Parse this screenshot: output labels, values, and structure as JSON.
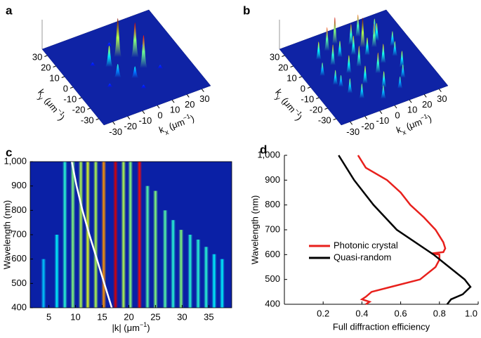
{
  "chart_data": [
    {
      "type": "surface3d",
      "panel": "a",
      "x_label": [
        "k",
        "x",
        " (μm",
        "−1",
        ")"
      ],
      "y_label": [
        "k",
        "y",
        " (μm",
        "−1",
        ")"
      ],
      "xlim": [
        -36,
        36
      ],
      "ylim": [
        -36,
        36
      ],
      "xticks": [
        -30,
        -20,
        -10,
        0,
        10,
        20,
        30
      ],
      "yticks": [
        -30,
        -20,
        -10,
        0,
        10,
        20,
        30
      ],
      "peaks": {
        "x": [
          -8.7,
          0,
          8.7,
          -8.7,
          8.7,
          0,
          17,
          -17,
          0,
          17,
          -17,
          0
        ],
        "y": [
          5,
          10,
          5,
          -5,
          -5,
          -10,
          10,
          10,
          20,
          -10,
          -10,
          -20
        ],
        "z": [
          0.55,
          1.0,
          0.9,
          0.35,
          0.85,
          0.3,
          0.1,
          0.1,
          0.1,
          0.1,
          0.1,
          0.1
        ]
      }
    },
    {
      "type": "surface3d",
      "panel": "b",
      "x_label": [
        "k",
        "x",
        " (μm",
        "−1",
        ")"
      ],
      "y_label": [
        "k",
        "y",
        " (μm",
        "−1",
        ")"
      ],
      "xlim": [
        -36,
        36
      ],
      "ylim": [
        -36,
        36
      ],
      "xticks": [
        -30,
        -20,
        -10,
        0,
        10,
        20,
        30
      ],
      "yticks": [
        -30,
        -20,
        -10,
        0,
        10,
        20,
        30
      ],
      "peaks": {
        "x": [
          -20,
          -12,
          -5,
          3,
          10,
          18,
          24,
          -25,
          -15,
          -8,
          0,
          7,
          14,
          21,
          -22,
          -10,
          -2,
          12,
          20,
          -18,
          -6,
          5,
          16,
          -14,
          2,
          10,
          -3,
          8,
          -20,
          20
        ],
        "y": [
          18,
          22,
          25,
          20,
          24,
          16,
          8,
          5,
          10,
          14,
          12,
          8,
          12,
          0,
          -5,
          0,
          2,
          -2,
          -10,
          -15,
          -12,
          -8,
          -18,
          -22,
          -20,
          -25,
          -28,
          15,
          -8,
          22
        ],
        "z": [
          0.6,
          0.8,
          0.9,
          0.7,
          0.75,
          0.6,
          0.5,
          0.45,
          0.7,
          0.55,
          0.65,
          0.6,
          0.8,
          0.5,
          0.5,
          0.6,
          0.7,
          0.65,
          0.55,
          0.5,
          0.6,
          0.7,
          0.45,
          0.5,
          0.55,
          0.4,
          0.45,
          1.0,
          0.4,
          0.5
        ]
      }
    },
    {
      "type": "heatmap",
      "panel": "c",
      "x_label": [
        "|k| (μm",
        "−1",
        ")"
      ],
      "y_label": "Wavelength (nm)",
      "xlim": [
        1.5,
        39.3
      ],
      "ylim": [
        400,
        1000
      ],
      "xticks": [
        5,
        10,
        15,
        20,
        25,
        30,
        35
      ],
      "yticks": [
        400,
        500,
        600,
        700,
        800,
        900,
        {
          "value": 1000,
          "label": "1,000"
        }
      ],
      "stripes": {
        "k": [
          4,
          6.5,
          8,
          9.5,
          11,
          12.3,
          13.8,
          15.3,
          17.5,
          19,
          20.3,
          22,
          23.5,
          25,
          26.8,
          28.3,
          29.8,
          31.5,
          33,
          34.5,
          36,
          37.5
        ],
        "intensity": [
          0.25,
          0.3,
          0.35,
          0.45,
          0.5,
          0.55,
          0.5,
          0.7,
          0.9,
          0.5,
          0.45,
          0.85,
          0.4,
          0.45,
          0.4,
          0.35,
          0.45,
          0.35,
          0.35,
          0.35,
          0.3,
          0.3
        ],
        "max_wavelength": [
          600,
          700,
          1000,
          1000,
          1000,
          1000,
          1000,
          1000,
          1000,
          1000,
          1000,
          1000,
          900,
          880,
          800,
          760,
          720,
          700,
          680,
          650,
          620,
          600
        ]
      },
      "curve": {
        "color": "#ffffff",
        "x": [
          9.3,
          10.2,
          11.3,
          12.6,
          14.0,
          15.4,
          16.8
        ],
        "y": [
          1000,
          900,
          800,
          700,
          600,
          500,
          400
        ]
      }
    },
    {
      "type": "line",
      "panel": "d",
      "x_label": "Full diffraction efficiency",
      "y_label": "Wavelength (nm)",
      "xlim": [
        0,
        1
      ],
      "ylim": [
        400,
        1000
      ],
      "xticks": [
        0.2,
        0.4,
        0.6,
        0.8,
        {
          "value": 1,
          "label": "1.0"
        }
      ],
      "yticks": [
        400,
        500,
        600,
        700,
        800,
        900,
        {
          "value": 1000,
          "label": "1,000"
        }
      ],
      "series": [
        {
          "name": "Photonic crystal",
          "color": "#e8201c",
          "values": [
            0.38,
            0.42,
            0.53,
            0.6,
            0.65,
            0.72,
            0.78,
            0.82,
            0.83,
            0.82,
            0.76,
            0.8,
            0.8,
            0.78,
            0.7,
            0.55,
            0.45,
            0.42,
            0.4,
            0.44,
            0.42
          ],
          "y": [
            1000,
            950,
            900,
            850,
            800,
            750,
            700,
            650,
            625,
            610,
            605,
            600,
            580,
            550,
            500,
            470,
            450,
            430,
            420,
            410,
            400
          ]
        },
        {
          "name": "Quasi-random",
          "color": "#000000",
          "values": [
            0.28,
            0.36,
            0.46,
            0.58,
            0.77,
            0.85,
            0.93,
            0.96,
            0.92,
            0.86,
            0.84
          ],
          "y": [
            1000,
            900,
            800,
            700,
            600,
            550,
            500,
            470,
            440,
            420,
            400
          ]
        }
      ]
    }
  ]
}
